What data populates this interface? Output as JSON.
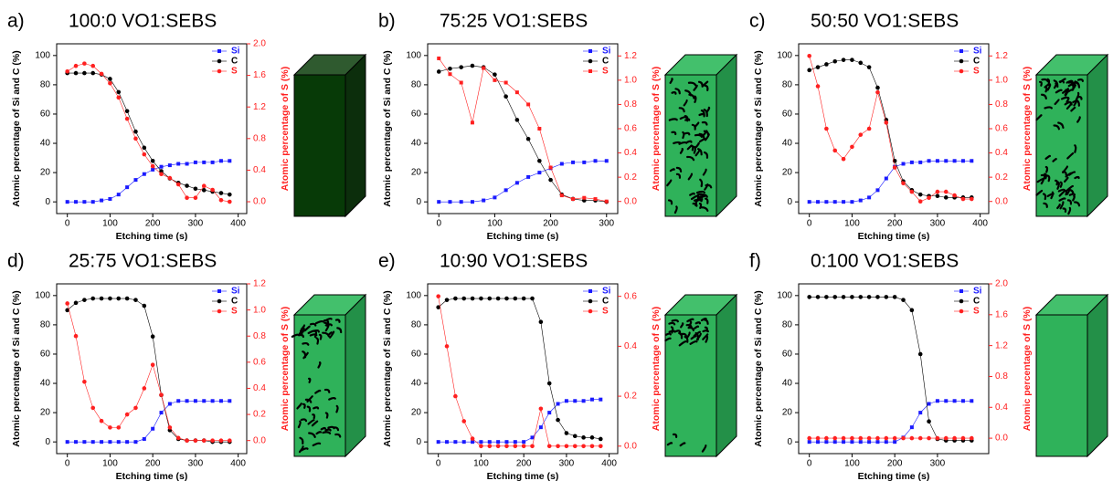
{
  "chart_data": [
    {
      "type": "line",
      "panel": "a)",
      "title": "100:0 VO1:SEBS",
      "xlabel": "Etching time (s)",
      "ylabel": "Atomic percentage of Si and C (%)",
      "y2label": "Atomic percentage of S (%)",
      "x": [
        0,
        20,
        40,
        60,
        80,
        100,
        120,
        140,
        160,
        180,
        200,
        220,
        240,
        260,
        280,
        300,
        320,
        340,
        360,
        380
      ],
      "xlim": [
        -25,
        420
      ],
      "xticks": [
        0,
        100,
        200,
        300,
        400
      ],
      "ylim": [
        -8,
        108
      ],
      "yticks": [
        0,
        20,
        40,
        60,
        80,
        100
      ],
      "y2lim": [
        -0.15,
        2.0
      ],
      "y2ticks": [
        {
          "value": 0,
          "label": "0.0"
        },
        {
          "value": 0.4,
          "label": "0.4"
        },
        {
          "value": 0.8,
          "label": "0.8"
        },
        {
          "value": 1.2,
          "label": "1.2"
        },
        {
          "value": 1.6,
          "label": "1.6"
        },
        {
          "value": 2.0,
          "label": "2.0"
        }
      ],
      "series": [
        {
          "name": "Si",
          "color": "#1a1aff",
          "marker": "square",
          "values": [
            0,
            0,
            0,
            0,
            1,
            2,
            5,
            10,
            15,
            19,
            22,
            24,
            25,
            26,
            26,
            27,
            27,
            27,
            28,
            28
          ]
        },
        {
          "name": "C",
          "color": "#000000",
          "marker": "circle",
          "values": [
            88,
            88,
            88,
            88,
            87,
            84,
            75,
            62,
            48,
            37,
            28,
            21,
            16,
            13,
            11,
            9,
            8,
            7,
            6,
            5
          ]
        },
        {
          "name": "S",
          "color": "#ff2020",
          "marker": "circle",
          "axis": "y2",
          "values": [
            1.65,
            1.72,
            1.75,
            1.72,
            1.62,
            1.5,
            1.32,
            1.05,
            0.8,
            0.6,
            0.45,
            0.35,
            0.3,
            0.22,
            0.05,
            0.05,
            0.2,
            0.15,
            0.02,
            0.0
          ]
        }
      ]
    },
    {
      "type": "line",
      "panel": "b)",
      "title": "75:25 VO1:SEBS",
      "xlabel": "Etching time (s)",
      "ylabel": "Atomic percentage of Si and C (%)",
      "y2label": "Atomic percentage of S (%)",
      "x": [
        0,
        20,
        40,
        60,
        80,
        100,
        120,
        140,
        160,
        180,
        200,
        220,
        240,
        260,
        280,
        300
      ],
      "xlim": [
        -20,
        320
      ],
      "xticks": [
        0,
        100,
        200,
        300
      ],
      "ylim": [
        -8,
        108
      ],
      "yticks": [
        0,
        20,
        40,
        60,
        80,
        100
      ],
      "y2lim": [
        -0.1,
        1.3
      ],
      "y2ticks": [
        {
          "value": 0,
          "label": "0.0"
        },
        {
          "value": 0.2,
          "label": "0.2"
        },
        {
          "value": 0.4,
          "label": "0.4"
        },
        {
          "value": 0.6,
          "label": "0.6"
        },
        {
          "value": 0.8,
          "label": "0.8"
        },
        {
          "value": 1.0,
          "label": "1.0"
        },
        {
          "value": 1.2,
          "label": "1.2"
        }
      ],
      "series": [
        {
          "name": "Si",
          "color": "#1a1aff",
          "marker": "square",
          "values": [
            0,
            0,
            0,
            0,
            1,
            3,
            8,
            13,
            17,
            20,
            23,
            26,
            27,
            27,
            28,
            28
          ]
        },
        {
          "name": "C",
          "color": "#000000",
          "marker": "circle",
          "values": [
            89,
            91,
            92,
            93,
            92,
            87,
            72,
            56,
            43,
            28,
            15,
            5,
            2,
            1,
            1,
            0
          ]
        },
        {
          "name": "S",
          "color": "#ff2020",
          "marker": "square",
          "axis": "y2",
          "values": [
            1.18,
            1.05,
            0.98,
            0.65,
            1.1,
            1.0,
            0.98,
            0.9,
            0.8,
            0.6,
            0.28,
            0.05,
            0.02,
            0.03,
            0.02,
            0.0
          ]
        }
      ]
    },
    {
      "type": "line",
      "panel": "c)",
      "title": "50:50 VO1:SEBS",
      "xlabel": "Etching time (s)",
      "ylabel": "Atomic percentage of Si and C (%)",
      "y2label": "Atomic percentage of S (%)",
      "x": [
        0,
        20,
        40,
        60,
        80,
        100,
        120,
        140,
        160,
        180,
        200,
        220,
        240,
        260,
        280,
        300,
        320,
        340,
        360,
        380
      ],
      "xlim": [
        -25,
        420
      ],
      "xticks": [
        0,
        100,
        200,
        300,
        400
      ],
      "ylim": [
        -8,
        108
      ],
      "yticks": [
        0,
        20,
        40,
        60,
        80,
        100
      ],
      "y2lim": [
        -0.1,
        1.3
      ],
      "y2ticks": [
        {
          "value": 0,
          "label": "0.0"
        },
        {
          "value": 0.2,
          "label": "0.2"
        },
        {
          "value": 0.4,
          "label": "0.4"
        },
        {
          "value": 0.6,
          "label": "0.6"
        },
        {
          "value": 0.8,
          "label": "0.8"
        },
        {
          "value": 1.0,
          "label": "1.0"
        },
        {
          "value": 1.2,
          "label": "1.2"
        }
      ],
      "series": [
        {
          "name": "Si",
          "color": "#1a1aff",
          "marker": "square",
          "values": [
            0,
            0,
            0,
            0,
            0,
            0,
            1,
            3,
            8,
            16,
            24,
            26,
            27,
            27,
            28,
            28,
            28,
            28,
            28,
            28
          ]
        },
        {
          "name": "C",
          "color": "#000000",
          "marker": "circle",
          "values": [
            90,
            92,
            94,
            96,
            97,
            97,
            95,
            92,
            78,
            56,
            28,
            14,
            8,
            5,
            4,
            4,
            3,
            3,
            3,
            3
          ]
        },
        {
          "name": "S",
          "color": "#ff2020",
          "marker": "circle",
          "axis": "y2",
          "values": [
            1.2,
            0.95,
            0.6,
            0.42,
            0.35,
            0.45,
            0.55,
            0.6,
            0.9,
            0.65,
            0.28,
            0.15,
            0.08,
            0.0,
            0.03,
            0.08,
            0.08,
            0.05,
            0.02,
            0.02
          ]
        }
      ]
    },
    {
      "type": "line",
      "panel": "d)",
      "title": "25:75 VO1:SEBS",
      "xlabel": "Etching time (s)",
      "ylabel": "Atomic percentage of Si and C (%)",
      "y2label": "Atomic percentage of S (%)",
      "x": [
        0,
        20,
        40,
        60,
        80,
        100,
        120,
        140,
        160,
        180,
        200,
        220,
        240,
        260,
        280,
        300,
        320,
        340,
        360,
        380
      ],
      "xlim": [
        -25,
        420
      ],
      "xticks": [
        0,
        100,
        200,
        300,
        400
      ],
      "ylim": [
        -8,
        108
      ],
      "yticks": [
        0,
        20,
        40,
        60,
        80,
        100
      ],
      "y2lim": [
        -0.1,
        1.2
      ],
      "y2ticks": [
        {
          "value": 0,
          "label": "0.0"
        },
        {
          "value": 0.2,
          "label": "0.2"
        },
        {
          "value": 0.4,
          "label": "0.4"
        },
        {
          "value": 0.6,
          "label": "0.6"
        },
        {
          "value": 0.8,
          "label": "0.8"
        },
        {
          "value": 1.0,
          "label": "1.0"
        },
        {
          "value": 1.2,
          "label": "1.2"
        }
      ],
      "series": [
        {
          "name": "Si",
          "color": "#1a1aff",
          "marker": "square",
          "values": [
            0,
            0,
            0,
            0,
            0,
            0,
            0,
            0,
            0,
            2,
            9,
            20,
            26,
            28,
            28,
            28,
            28,
            28,
            28,
            28
          ]
        },
        {
          "name": "C",
          "color": "#000000",
          "marker": "circle",
          "values": [
            90,
            95,
            97,
            98,
            98,
            98,
            98,
            98,
            97,
            93,
            72,
            32,
            8,
            2,
            1,
            1,
            1,
            0,
            0,
            0
          ]
        },
        {
          "name": "S",
          "color": "#ff2020",
          "marker": "circle",
          "axis": "y2",
          "values": [
            1.05,
            0.8,
            0.45,
            0.25,
            0.15,
            0.1,
            0.1,
            0.2,
            0.25,
            0.4,
            0.58,
            0.35,
            0.1,
            0.02,
            0.0,
            0.0,
            0.0,
            0.0,
            0.0,
            0.0
          ]
        }
      ]
    },
    {
      "type": "line",
      "panel": "e)",
      "title": "10:90 VO1:SEBS",
      "xlabel": "Etching time (s)",
      "ylabel": "Atomic percentage of Si and C (%)",
      "y2label": "Atomic percentage of S (%)",
      "x": [
        0,
        20,
        40,
        60,
        80,
        100,
        120,
        140,
        160,
        180,
        200,
        220,
        240,
        260,
        280,
        300,
        320,
        340,
        360,
        380
      ],
      "xlim": [
        -25,
        420
      ],
      "xticks": [
        0,
        100,
        200,
        300,
        400
      ],
      "ylim": [
        -8,
        108
      ],
      "yticks": [
        0,
        20,
        40,
        60,
        80,
        100
      ],
      "y2lim": [
        -0.03,
        0.65
      ],
      "y2ticks": [
        {
          "value": 0,
          "label": "0.0"
        },
        {
          "value": 0.2,
          "label": "0.2"
        },
        {
          "value": 0.4,
          "label": "0.4"
        },
        {
          "value": 0.6,
          "label": "0.6"
        }
      ],
      "series": [
        {
          "name": "Si",
          "color": "#1a1aff",
          "marker": "square",
          "values": [
            0,
            0,
            0,
            0,
            0,
            0,
            0,
            0,
            0,
            0,
            0,
            3,
            10,
            20,
            26,
            28,
            28,
            28,
            29,
            29
          ]
        },
        {
          "name": "C",
          "color": "#000000",
          "marker": "circle",
          "values": [
            92,
            97,
            98,
            98,
            98,
            98,
            98,
            98,
            98,
            98,
            98,
            98,
            82,
            40,
            15,
            6,
            4,
            3,
            3,
            2
          ]
        },
        {
          "name": "S",
          "color": "#ff2020",
          "marker": "circle",
          "axis": "y2",
          "values": [
            0.6,
            0.4,
            0.2,
            0.1,
            0.03,
            0.0,
            0.0,
            0.0,
            0.0,
            0.0,
            0.0,
            0.0,
            0.15,
            0.0,
            0.0,
            0.0,
            0.0,
            0.0,
            0.0,
            0.0
          ]
        }
      ]
    },
    {
      "type": "line",
      "panel": "f)",
      "title": "0:100 VO1:SEBS",
      "xlabel": "Etching time (s)",
      "ylabel": "Atomic percentage of Si and C (%)",
      "y2label": "Atomic percentage of S (%)",
      "x": [
        0,
        20,
        40,
        60,
        80,
        100,
        120,
        140,
        160,
        180,
        200,
        220,
        240,
        260,
        280,
        300,
        320,
        340,
        360,
        380
      ],
      "xlim": [
        -25,
        420
      ],
      "xticks": [
        0,
        100,
        200,
        300
      ],
      "ylim": [
        -8,
        108
      ],
      "yticks": [
        0,
        20,
        40,
        60,
        80,
        100
      ],
      "y2lim": [
        -0.2,
        2.0
      ],
      "y2ticks": [
        {
          "value": 0,
          "label": "0.0"
        },
        {
          "value": 0.4,
          "label": "0.4"
        },
        {
          "value": 0.8,
          "label": "0.8"
        },
        {
          "value": 1.2,
          "label": "1.2"
        },
        {
          "value": 1.6,
          "label": "1.6"
        },
        {
          "value": 2.0,
          "label": "2.0"
        }
      ],
      "series": [
        {
          "name": "Si",
          "color": "#1a1aff",
          "marker": "square",
          "values": [
            0,
            0,
            0,
            0,
            0,
            0,
            0,
            0,
            0,
            0,
            0,
            3,
            10,
            20,
            26,
            28,
            28,
            28,
            28,
            28
          ]
        },
        {
          "name": "C",
          "color": "#000000",
          "marker": "circle",
          "values": [
            99,
            99,
            99,
            99,
            99,
            99,
            99,
            99,
            99,
            99,
            99,
            97,
            90,
            60,
            14,
            2,
            1,
            1,
            1,
            1
          ]
        },
        {
          "name": "S",
          "color": "#ff2020",
          "marker": "circle",
          "axis": "y2",
          "values": [
            0,
            0,
            0,
            0,
            0,
            0,
            0,
            0,
            0,
            0,
            0,
            0,
            0,
            0,
            0,
            0,
            0,
            0,
            0,
            0
          ]
        }
      ]
    }
  ]
}
